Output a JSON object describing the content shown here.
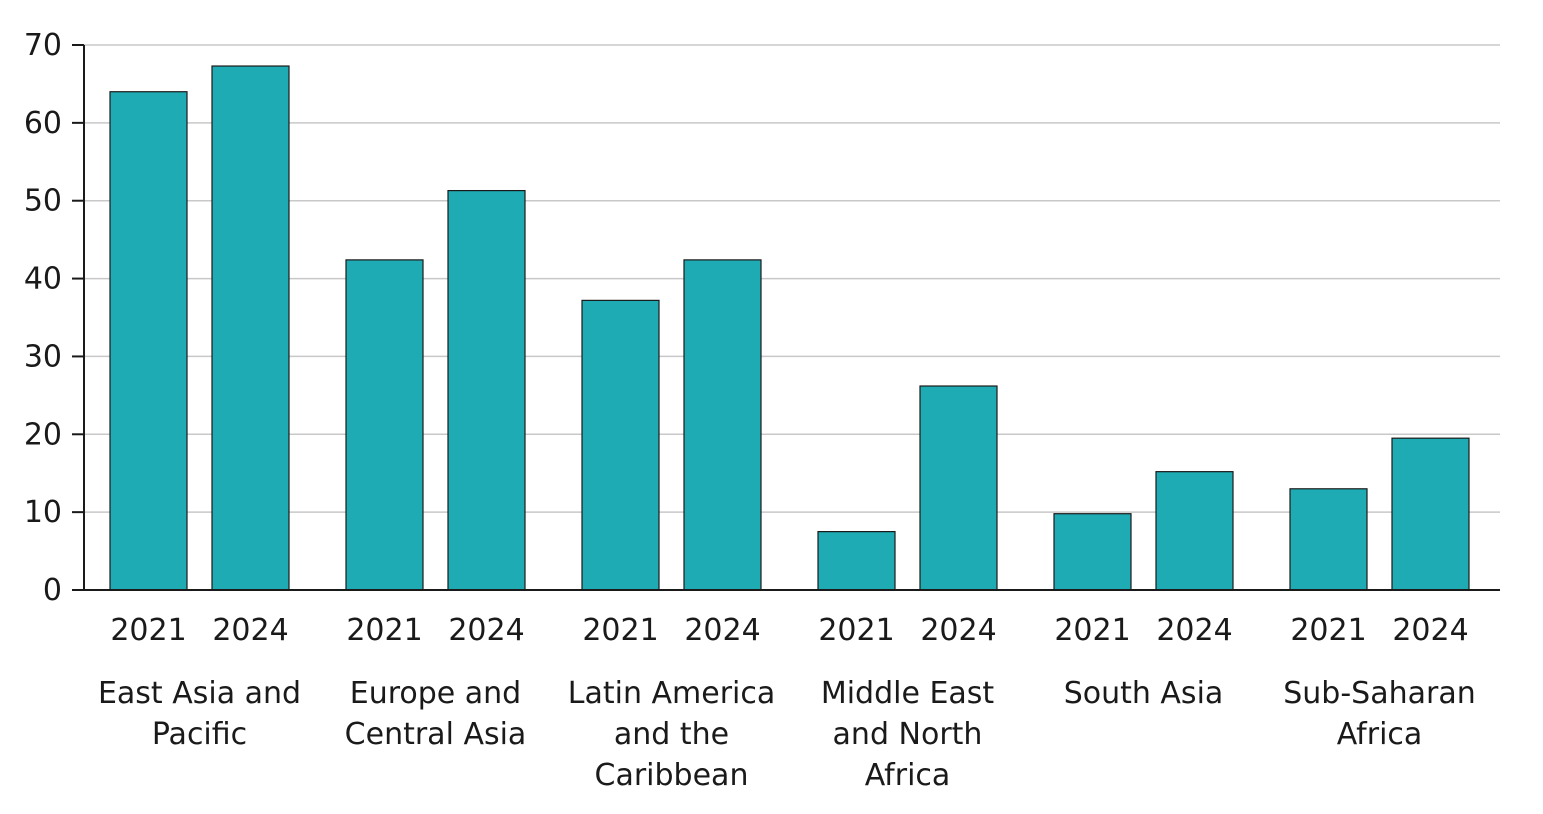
{
  "chart_data": {
    "type": "bar",
    "title": "",
    "xlabel": "",
    "ylabel": "",
    "ylim": [
      0,
      70
    ],
    "yticks": [
      0,
      10,
      20,
      30,
      40,
      50,
      60,
      70
    ],
    "grid": true,
    "bar_color": "#1eabb3",
    "groups": [
      {
        "label_lines": [
          "East Asia and",
          "Pacific"
        ],
        "bars": [
          {
            "year": "2021",
            "value": 64
          },
          {
            "year": "2024",
            "value": 67.3
          }
        ]
      },
      {
        "label_lines": [
          "Europe and",
          "Central Asia"
        ],
        "bars": [
          {
            "year": "2021",
            "value": 42.4
          },
          {
            "year": "2024",
            "value": 51.3
          }
        ]
      },
      {
        "label_lines": [
          "Latin America",
          "and the",
          "Caribbean"
        ],
        "bars": [
          {
            "year": "2021",
            "value": 37.2
          },
          {
            "year": "2024",
            "value": 42.4
          }
        ]
      },
      {
        "label_lines": [
          "Middle East",
          "and North",
          "Africa"
        ],
        "bars": [
          {
            "year": "2021",
            "value": 7.5
          },
          {
            "year": "2024",
            "value": 26.2
          }
        ]
      },
      {
        "label_lines": [
          "South Asia"
        ],
        "bars": [
          {
            "year": "2021",
            "value": 9.8
          },
          {
            "year": "2024",
            "value": 15.2
          }
        ]
      },
      {
        "label_lines": [
          "Sub-Saharan",
          "Africa"
        ],
        "bars": [
          {
            "year": "2021",
            "value": 13
          },
          {
            "year": "2024",
            "value": 19.5
          }
        ]
      }
    ]
  }
}
